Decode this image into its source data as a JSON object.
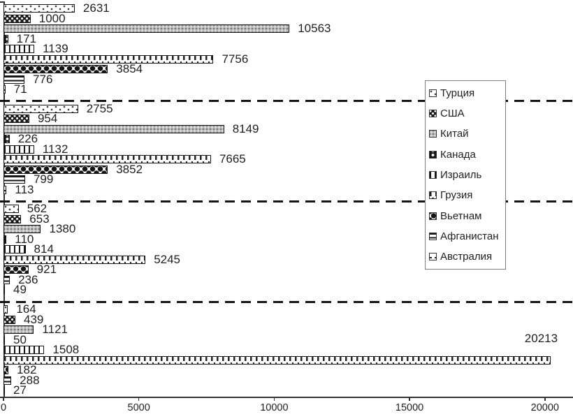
{
  "chart_data": {
    "type": "bar",
    "orientation": "horizontal",
    "title": "",
    "legend": [
      "Турция",
      "США",
      "Китай",
      "Канада",
      "Израиль",
      "Грузия",
      "Вьетнам",
      "Афганистан",
      "Австралия"
    ],
    "legend_position": "middle-right",
    "groups_note": "4 unlabeled category groups top-to-bottom, separated by dashed lines; bars in each group follow legend order",
    "groups": [
      {
        "bars": [
          2631,
          1000,
          10563,
          171,
          1139,
          7756,
          3854,
          776,
          71
        ]
      },
      {
        "bars": [
          2755,
          954,
          8149,
          226,
          1132,
          7665,
          3852,
          799,
          113
        ]
      },
      {
        "bars": [
          562,
          653,
          1380,
          110,
          814,
          5245,
          921,
          236,
          49
        ]
      },
      {
        "bars": [
          164,
          439,
          1121,
          50,
          1508,
          20213,
          182,
          288,
          27
        ]
      }
    ],
    "x_ticks": [
      {
        "label": "0",
        "value": 0
      },
      {
        "label": "5000",
        "value": 5000
      },
      {
        "label": "10000",
        "value": 10000
      },
      {
        "label": "15000",
        "value": 15000
      },
      {
        "label": "20000",
        "value": 20000
      }
    ],
    "xlim": [
      0,
      21000
    ],
    "grid": "off",
    "bar_patterns": [
      "sparse-dots",
      "dark-trellis",
      "gray-fine-dots",
      "dark-circles",
      "vertical-lines",
      "crenellation-dashes",
      "solid-diamonds",
      "horizontal-lines",
      "outline-white"
    ]
  },
  "colors": {
    "background": "#ffffff",
    "bar_border": "#141414",
    "text": "#1f1f1f",
    "axis": "#333333",
    "legend_border": "#7f7f7f",
    "gray_fill": "#b8b8b8"
  }
}
